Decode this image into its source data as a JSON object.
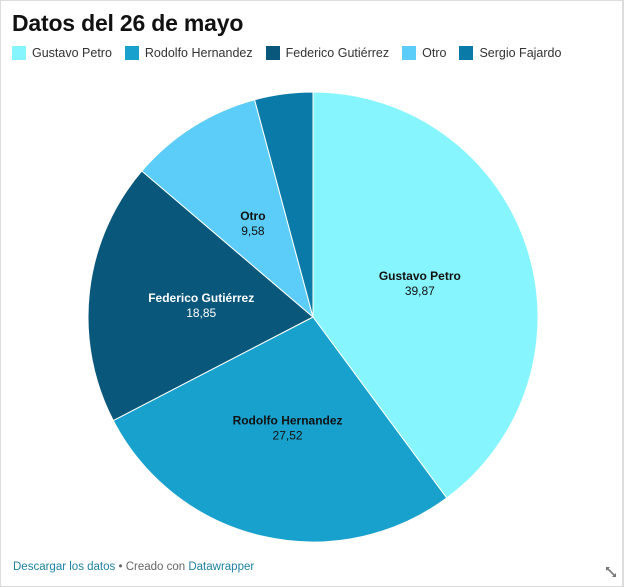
{
  "title": "Datos del 26 de mayo",
  "legend": [
    {
      "label": "Gustavo Petro",
      "color": "#87f5fe"
    },
    {
      "label": "Rodolfo Hernandez",
      "color": "#18a1cd"
    },
    {
      "label": "Federico Gutiérrez",
      "color": "#09577b"
    },
    {
      "label": "Otro",
      "color": "#5bcdf8"
    },
    {
      "label": "Sergio Fajardo",
      "color": "#0a7aa8"
    }
  ],
  "chart_data": {
    "type": "pie",
    "title": "Datos del 26 de mayo",
    "categories": [
      "Gustavo Petro",
      "Rodolfo Hernandez",
      "Federico Gutiérrez",
      "Otro",
      "Sergio Fajardo"
    ],
    "values": [
      39.87,
      27.52,
      18.85,
      9.58,
      4.18
    ],
    "value_labels": [
      "39,87",
      "27,52",
      "18,85",
      "9,58",
      ""
    ],
    "colors": [
      "#87f5fe",
      "#18a1cd",
      "#09577b",
      "#5bcdf8",
      "#0a7aa8"
    ],
    "label_colors": [
      "#111111",
      "#111111",
      "#ffffff",
      "#111111",
      "#ffffff"
    ],
    "start_angle": "12 o'clock",
    "direction": "clockwise",
    "legend_position": "top"
  },
  "footer": {
    "download_link": "Descargar los datos",
    "separator": " • Creado con ",
    "credit_link": "Datawrapper"
  }
}
